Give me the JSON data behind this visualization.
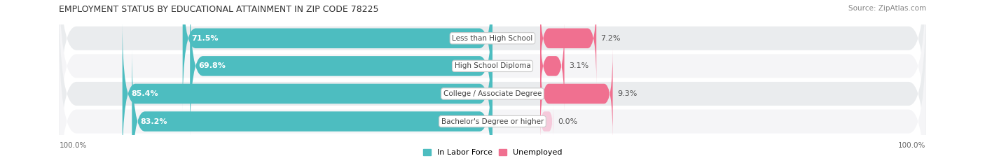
{
  "title": "EMPLOYMENT STATUS BY EDUCATIONAL ATTAINMENT IN ZIP CODE 78225",
  "source": "Source: ZipAtlas.com",
  "categories": [
    "Less than High School",
    "High School Diploma",
    "College / Associate Degree",
    "Bachelor's Degree or higher"
  ],
  "labor_force": [
    71.5,
    69.8,
    85.4,
    83.2
  ],
  "unemployed": [
    7.2,
    3.1,
    9.3,
    0.0
  ],
  "labor_force_color": "#4DBDC0",
  "unemployed_color": "#F07090",
  "unemployed_color_light": "#F5A0C0",
  "row_bg_color": "#EAECEE",
  "row_bg_color2": "#F5F5F7",
  "title_fontsize": 9,
  "source_fontsize": 7.5,
  "bar_label_fontsize": 8,
  "category_fontsize": 7.5,
  "axis_label_fontsize": 7.5,
  "legend_fontsize": 8,
  "left_axis_label": "100.0%",
  "right_axis_label": "100.0%"
}
